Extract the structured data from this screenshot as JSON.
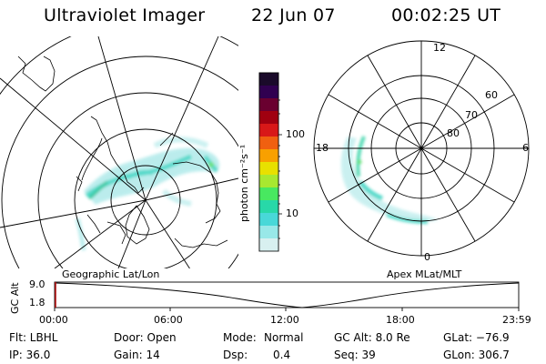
{
  "header": {
    "title": "Ultraviolet Imager",
    "date": "22 Jun 07",
    "time": "00:02:25 UT"
  },
  "left_map": {
    "caption": "Geographic Lat/Lon"
  },
  "right_map": {
    "caption": "Apex MLat/MLT",
    "mlt_labels": {
      "top": "12",
      "left": "18",
      "right": "6",
      "bottom": "0"
    },
    "lat_labels": [
      "60",
      "70",
      "80"
    ]
  },
  "colorbar": {
    "label": "photon cm⁻²s⁻¹",
    "ticks": [
      "100",
      "10"
    ],
    "colors": [
      "#1a0a2a",
      "#300050",
      "#6a0030",
      "#a00010",
      "#d81818",
      "#f06010",
      "#f8a000",
      "#e8e000",
      "#a8e830",
      "#48e860",
      "#28d8a8",
      "#48d8d8",
      "#98e8e8",
      "#d8f0f0"
    ]
  },
  "gc_plot": {
    "ylabel": "GC Alt",
    "ymax_label": "9.0",
    "ymin_label": "1.8",
    "x_ticks": [
      "00:00",
      "06:00",
      "12:00",
      "18:00",
      "23:59"
    ],
    "marker_color": "#b01010"
  },
  "info": {
    "flt": "Flt: LBHL",
    "ip": "IP: 36.0",
    "door": "Door: Open",
    "gain": "Gain: 14",
    "mode_label": "Mode:",
    "mode_value": "Normal",
    "dsp_label": "Dsp:",
    "dsp_value": "0.4",
    "gcalt": "GC Alt: 8.0 Re",
    "seq": "Seq: 39",
    "glat": "GLat: −76.9",
    "glon": "GLon: 306.7"
  }
}
